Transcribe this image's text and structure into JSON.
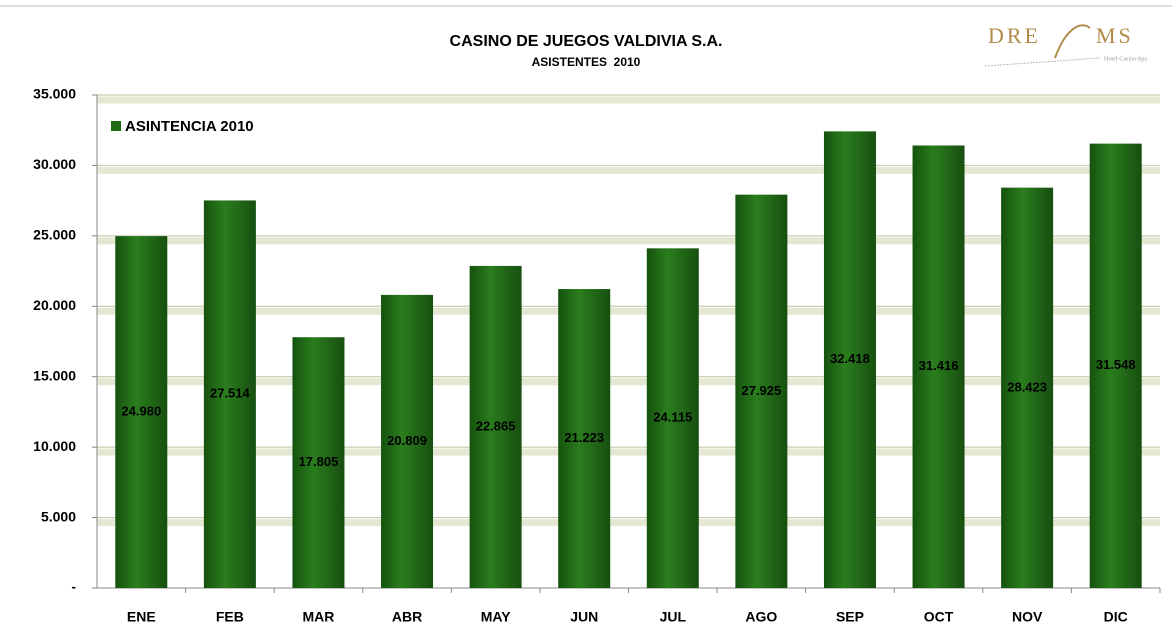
{
  "chart_data": {
    "type": "bar",
    "title": "CASINO DE JUEGOS VALDIVIA S.A.",
    "subtitle": "ASISTENTES  2010",
    "logo": {
      "left": "DRE",
      "right": "MS",
      "tagline": "Hotel-Casino-Spa"
    },
    "categories": [
      "ENE",
      "FEB",
      "MAR",
      "ABR",
      "MAY",
      "JUN",
      "JUL",
      "AGO",
      "SEP",
      "OCT",
      "NOV",
      "DIC"
    ],
    "series": [
      {
        "name": "ASINTENCIA 2010",
        "color": "#1e6b14",
        "values": [
          24980,
          27514,
          17805,
          20809,
          22865,
          21223,
          24115,
          27925,
          32418,
          31416,
          28423,
          31548
        ],
        "value_labels": [
          "24.980",
          "27.514",
          "17.805",
          "20.809",
          "22.865",
          "21.223",
          "24.115",
          "27.925",
          "32.418",
          "31.416",
          "28.423",
          "31.548"
        ]
      }
    ],
    "ylim": [
      0,
      35000
    ],
    "yticks": [
      {
        "value": 0,
        "label": "-"
      },
      {
        "value": 5000,
        "label": "5.000"
      },
      {
        "value": 10000,
        "label": "10.000"
      },
      {
        "value": 15000,
        "label": "15.000"
      },
      {
        "value": 20000,
        "label": "20.000"
      },
      {
        "value": 25000,
        "label": "25.000"
      },
      {
        "value": 30000,
        "label": "30.000"
      },
      {
        "value": 35000,
        "label": "35.000"
      }
    ],
    "grid": true,
    "legend": "top-left"
  }
}
